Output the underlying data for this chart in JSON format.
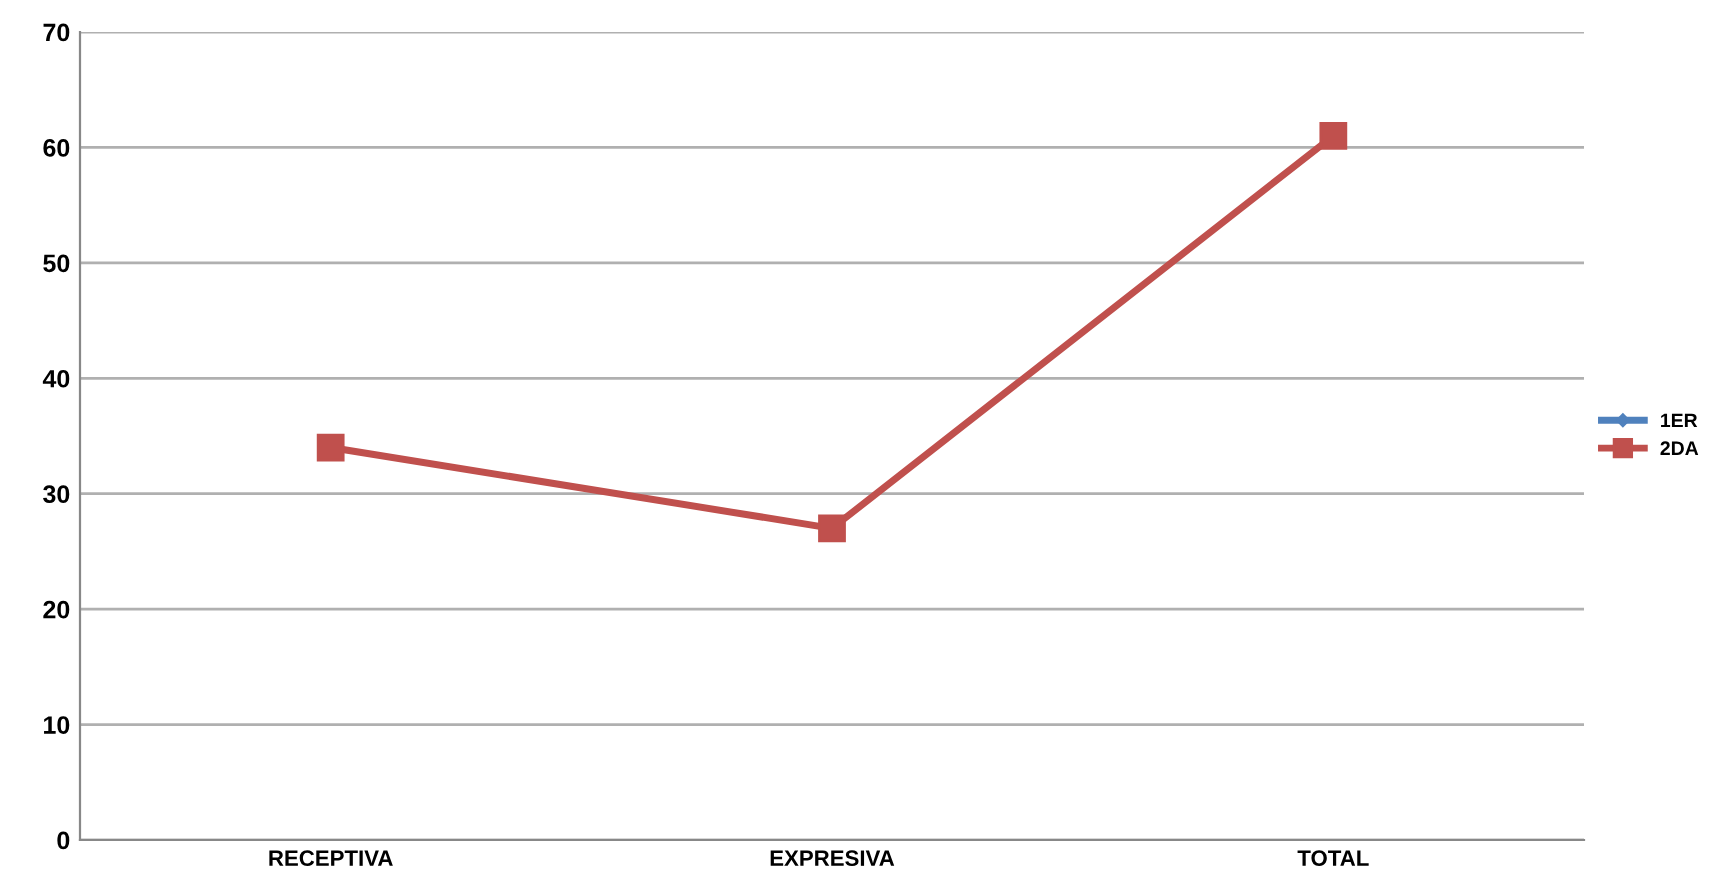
{
  "chart_data": {
    "type": "line",
    "categories": [
      "RECEPTIVA",
      "EXPRESIVA",
      "TOTAL"
    ],
    "series": [
      {
        "name": "1ER",
        "color": "#4f81bd",
        "values": [
          null,
          null,
          null
        ],
        "marker": "diamond"
      },
      {
        "name": "2DA",
        "color": "#c0504d",
        "values": [
          34,
          27,
          61
        ],
        "marker": "square"
      }
    ],
    "ylim": [
      0,
      70
    ],
    "yticks": [
      0,
      10,
      20,
      30,
      40,
      50,
      60,
      70
    ],
    "grid": "y",
    "legend": "right"
  }
}
